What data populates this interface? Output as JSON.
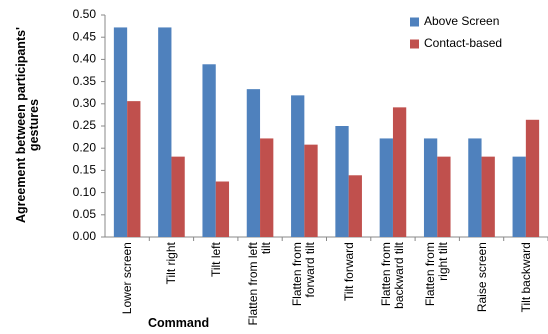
{
  "chart_data": {
    "type": "bar",
    "y_label": "Agreement between participants' gestures",
    "x_label": "Command",
    "categories": [
      "Lower screen",
      "Tilt right",
      "Tilt left",
      "Flatten from left tilt",
      "Flatten from forward tilt",
      "Tilt forward",
      "Flatten from backward tilt",
      "Flatten from right tilt",
      "Raise screen",
      "Tilt backward"
    ],
    "series": [
      {
        "name": "Above Screen",
        "color": "#4f81bd",
        "values": [
          0.472,
          0.472,
          0.389,
          0.333,
          0.319,
          0.25,
          0.222,
          0.222,
          0.222,
          0.181
        ]
      },
      {
        "name": "Contact-based",
        "color": "#c0504d",
        "values": [
          0.306,
          0.181,
          0.125,
          0.222,
          0.208,
          0.139,
          0.292,
          0.181,
          0.181,
          0.264
        ]
      }
    ],
    "ylim": [
      0,
      0.5
    ],
    "yticks": [
      {
        "value": 0,
        "label": "0.00"
      },
      {
        "value": 0.05,
        "label": "0.05"
      },
      {
        "value": 0.1,
        "label": "0.10"
      },
      {
        "value": 0.15,
        "label": "0.15"
      },
      {
        "value": 0.2,
        "label": "0.20"
      },
      {
        "value": 0.25,
        "label": "0.25"
      },
      {
        "value": 0.3,
        "label": "0.30"
      },
      {
        "value": 0.35,
        "label": "0.35"
      },
      {
        "value": 0.4,
        "label": "0.40"
      },
      {
        "value": 0.45,
        "label": "0.45"
      },
      {
        "value": 0.5,
        "label": "0.50"
      }
    ],
    "legend": "top-right"
  }
}
